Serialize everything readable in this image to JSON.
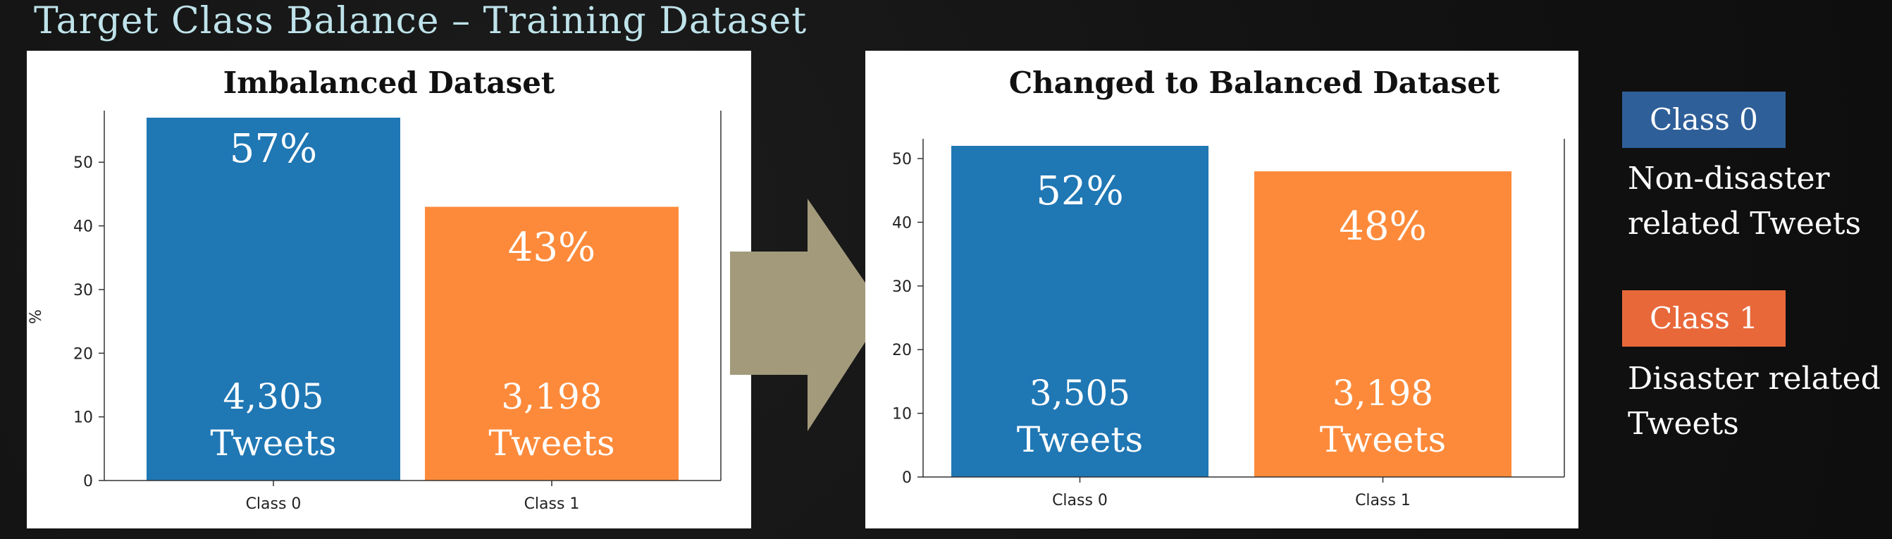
{
  "slide_title": "Target Class Balance – Training Dataset",
  "colors": {
    "class0": "#1f77b4",
    "class1": "#fd8a3a",
    "legend0": "#2e5f99",
    "legend1": "#e8683a",
    "arrow": "#a39a7c"
  },
  "legend": {
    "class0": {
      "label": "Class 0",
      "description_line1": "Non-disaster",
      "description_line2": "related Tweets"
    },
    "class1": {
      "label": "Class 1",
      "description_line1": "Disaster related",
      "description_line2": "Tweets"
    }
  },
  "chart_data": [
    {
      "type": "bar",
      "title": "Imbalanced Dataset",
      "categories": [
        "Class 0",
        "Class 1"
      ],
      "values": [
        57,
        43
      ],
      "value_labels": [
        "57%",
        "43%"
      ],
      "count_labels": [
        "4,305",
        "3,198"
      ],
      "count_unit": "Tweets",
      "ylabel": "%",
      "xlabel": "",
      "yticks": [
        0,
        10,
        20,
        30,
        40,
        50
      ],
      "ylim": [
        0,
        57
      ]
    },
    {
      "type": "bar",
      "title": "Changed to Balanced Dataset",
      "categories": [
        "Class 0",
        "Class 1"
      ],
      "values": [
        52,
        48
      ],
      "value_labels": [
        "52%",
        "48%"
      ],
      "count_labels": [
        "3,505",
        "3,198"
      ],
      "count_unit": "Tweets",
      "ylabel": "",
      "xlabel": "",
      "yticks": [
        0,
        10,
        20,
        30,
        40,
        50
      ],
      "ylim": [
        0,
        52
      ]
    }
  ]
}
